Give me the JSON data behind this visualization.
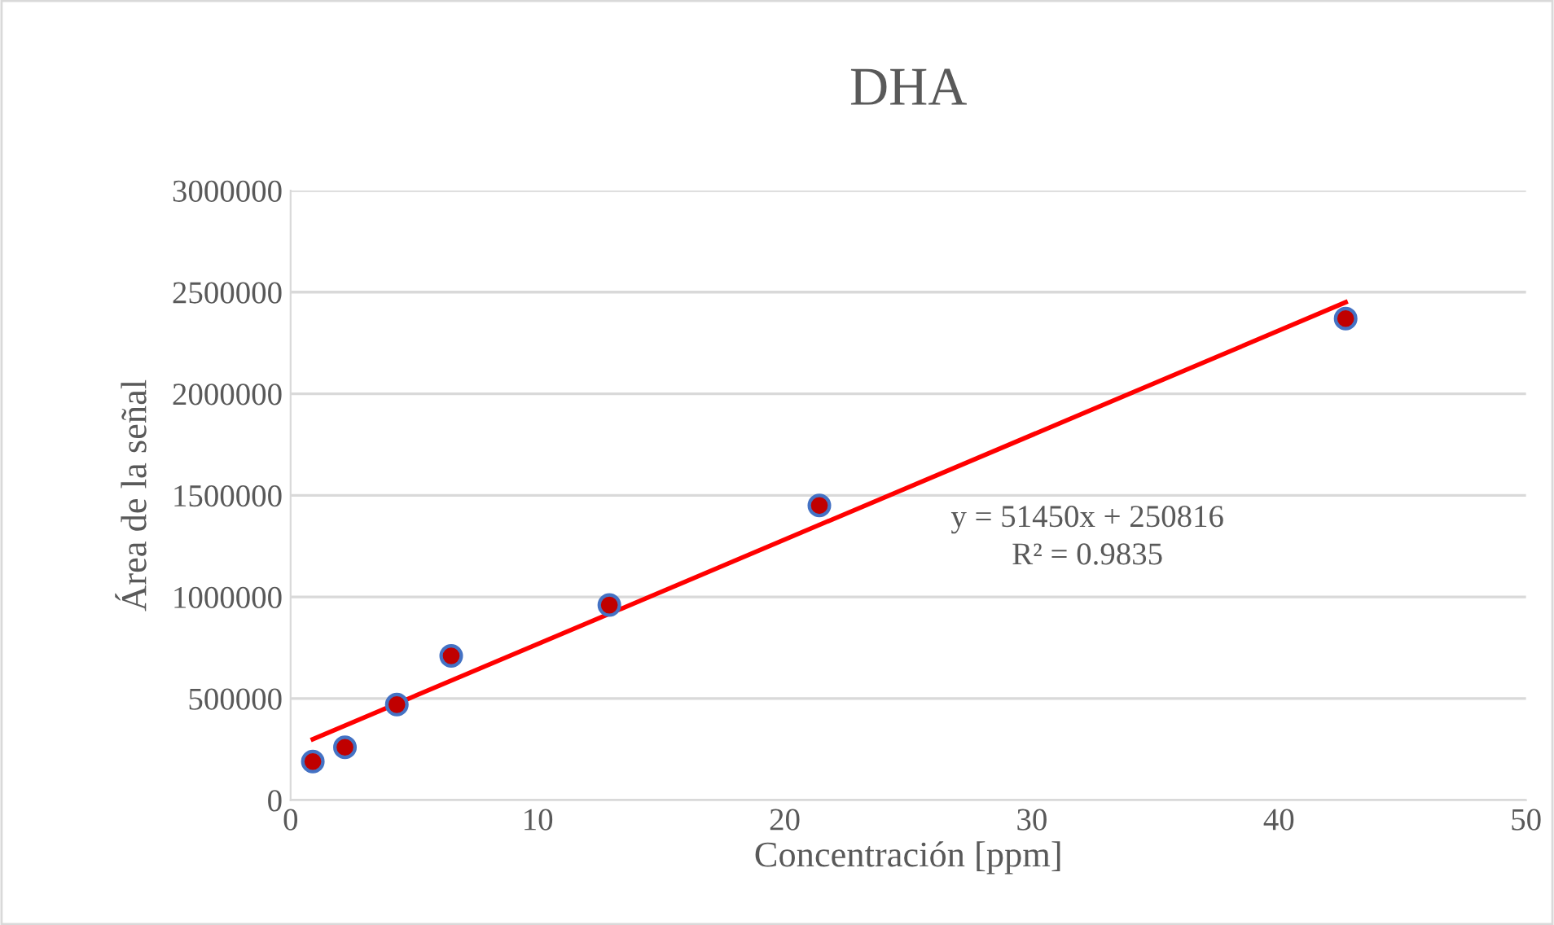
{
  "chart_data": {
    "type": "scatter",
    "title": "DHA",
    "xlabel": "Concentración [ppm]",
    "ylabel": "Área de la señal",
    "series": [
      {
        "color": "#c00000",
        "marker": "circle",
        "x": [
          0.9,
          2.2,
          4.3,
          6.5,
          12.9,
          21.4,
          42.7
        ],
        "values": [
          190000,
          260000,
          470000,
          710000,
          960000,
          1450000,
          2370000
        ]
      },
      {
        "type": "line",
        "color": "#ff0000",
        "line_style": "solid",
        "x": [
          0.9,
          42.7
        ],
        "values": [
          300000,
          2450000
        ]
      }
    ],
    "annotations": [
      "y = 51450x + 250816\nR² = 0.9835"
    ],
    "xlim": [
      0,
      50
    ],
    "xticks": [
      0,
      10,
      20,
      30,
      40,
      50
    ],
    "ylim": [
      0,
      3000000
    ],
    "yticks": [
      0,
      500000,
      1000000,
      1500000,
      2000000,
      2500000,
      3000000
    ],
    "grid": "y",
    "legend": false
  }
}
